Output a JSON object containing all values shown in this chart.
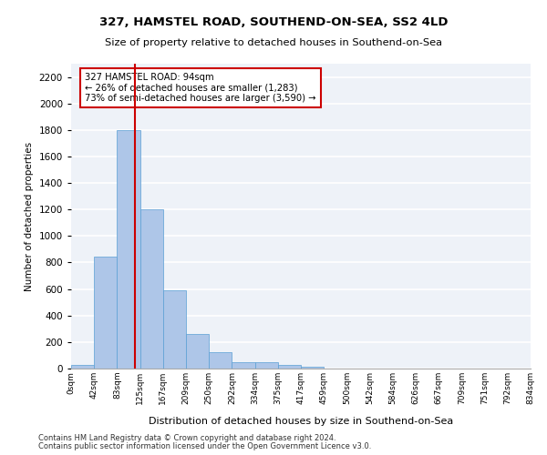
{
  "title1": "327, HAMSTEL ROAD, SOUTHEND-ON-SEA, SS2 4LD",
  "title2": "Size of property relative to detached houses in Southend-on-Sea",
  "xlabel": "Distribution of detached houses by size in Southend-on-Sea",
  "ylabel": "Number of detached properties",
  "footer1": "Contains HM Land Registry data © Crown copyright and database right 2024.",
  "footer2": "Contains public sector information licensed under the Open Government Licence v3.0.",
  "bar_values": [
    25,
    845,
    1800,
    1200,
    590,
    260,
    125,
    50,
    45,
    30,
    15,
    0,
    0,
    0,
    0,
    0,
    0,
    0,
    0,
    0
  ],
  "bin_labels": [
    "0sqm",
    "42sqm",
    "83sqm",
    "125sqm",
    "167sqm",
    "209sqm",
    "250sqm",
    "292sqm",
    "334sqm",
    "375sqm",
    "417sqm",
    "459sqm",
    "500sqm",
    "542sqm",
    "584sqm",
    "626sqm",
    "667sqm",
    "709sqm",
    "751sqm",
    "792sqm",
    "834sqm"
  ],
  "bar_color": "#aec6e8",
  "bar_edge_color": "#5a9fd4",
  "background_color": "#eef2f8",
  "grid_color": "#ffffff",
  "annotation_text": "327 HAMSTEL ROAD: 94sqm\n← 26% of detached houses are smaller (1,283)\n73% of semi-detached houses are larger (3,590) →",
  "vline_pos": 2.26,
  "vline_color": "#cc0000",
  "annotation_box_color": "#ffffff",
  "annotation_box_edge": "#cc0000",
  "ylim": [
    0,
    2300
  ],
  "yticks": [
    0,
    200,
    400,
    600,
    800,
    1000,
    1200,
    1400,
    1600,
    1800,
    2000,
    2200
  ]
}
